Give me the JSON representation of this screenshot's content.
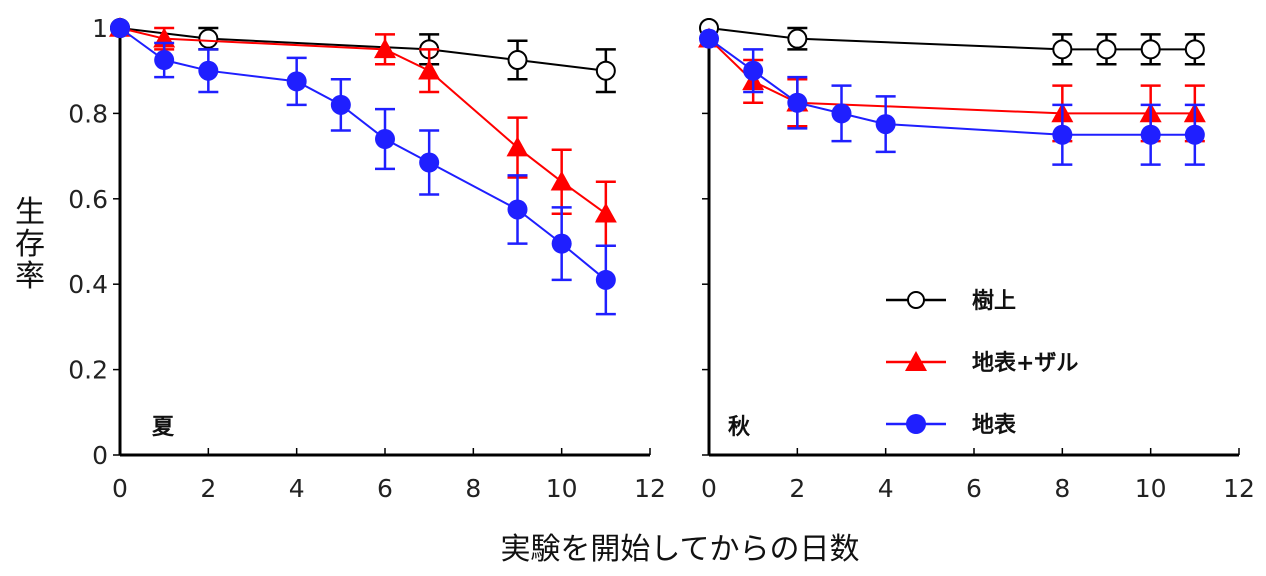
{
  "figure": {
    "ylabel": "生存率",
    "xlabel": "実験を開始してからの日数"
  },
  "legend": [
    {
      "label": "樹上",
      "series": 0
    },
    {
      "label": "地表+ザル",
      "series": 1
    },
    {
      "label": "地表",
      "series": 2
    }
  ],
  "chart_data": [
    {
      "type": "line",
      "panel_label": "夏",
      "xlim": [
        0,
        12
      ],
      "ylim": [
        0,
        1
      ],
      "xticks": [
        "0",
        "2",
        "4",
        "6",
        "8",
        "10",
        "12"
      ],
      "yticks": [
        "0",
        "0.2",
        "0.4",
        "0.6",
        "0.8",
        "1"
      ],
      "series": [
        {
          "name": "樹上",
          "color": "#000000",
          "marker": "open-circle",
          "x": [
            0,
            2,
            7,
            9,
            11
          ],
          "y": [
            1.0,
            0.975,
            0.95,
            0.925,
            0.9
          ],
          "err": [
            0,
            0.025,
            0.035,
            0.045,
            0.05
          ]
        },
        {
          "name": "地表+ザル",
          "color": "#ff0000",
          "marker": "triangle",
          "x": [
            0,
            1,
            6,
            7,
            9,
            10,
            11
          ],
          "y": [
            1.0,
            0.975,
            0.95,
            0.9,
            0.72,
            0.64,
            0.565
          ],
          "err": [
            0,
            0.025,
            0.035,
            0.05,
            0.07,
            0.075,
            0.075
          ]
        },
        {
          "name": "地表",
          "color": "#1f1fff",
          "marker": "filled-circle",
          "x": [
            0,
            1,
            2,
            4,
            5,
            6,
            7,
            9,
            10,
            11
          ],
          "y": [
            1.0,
            0.925,
            0.9,
            0.875,
            0.82,
            0.74,
            0.685,
            0.575,
            0.495,
            0.41
          ],
          "err": [
            0,
            0.04,
            0.05,
            0.055,
            0.06,
            0.07,
            0.075,
            0.08,
            0.085,
            0.08
          ]
        }
      ]
    },
    {
      "type": "line",
      "panel_label": "秋",
      "xlim": [
        0,
        12
      ],
      "ylim": [
        0,
        1
      ],
      "xticks": [
        "0",
        "2",
        "4",
        "6",
        "8",
        "10",
        "12"
      ],
      "yticks": [],
      "series": [
        {
          "name": "樹上",
          "color": "#000000",
          "marker": "open-circle",
          "x": [
            0,
            2,
            8,
            9,
            10,
            11
          ],
          "y": [
            1.0,
            0.975,
            0.95,
            0.95,
            0.95,
            0.95
          ],
          "err": [
            0,
            0.025,
            0.035,
            0.035,
            0.035,
            0.035
          ]
        },
        {
          "name": "地表+ザル",
          "color": "#ff0000",
          "marker": "triangle",
          "x": [
            0,
            1,
            2,
            8,
            10,
            11
          ],
          "y": [
            0.975,
            0.875,
            0.825,
            0.8,
            0.8,
            0.8
          ],
          "err": [
            0,
            0.05,
            0.055,
            0.065,
            0.065,
            0.065
          ]
        },
        {
          "name": "地表",
          "color": "#1f1fff",
          "marker": "filled-circle",
          "x": [
            0,
            1,
            2,
            3,
            4,
            8,
            10,
            11
          ],
          "y": [
            0.975,
            0.9,
            0.825,
            0.8,
            0.775,
            0.75,
            0.75,
            0.75
          ],
          "err": [
            0,
            0.05,
            0.06,
            0.065,
            0.065,
            0.07,
            0.07,
            0.07
          ]
        }
      ]
    }
  ]
}
